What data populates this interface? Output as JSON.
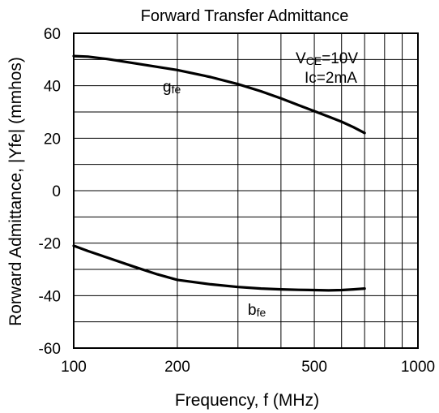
{
  "chart_data": {
    "type": "line",
    "title": "Forward Transfer Admittance",
    "xlabel": "Frequency, f (MHz)",
    "ylabel": "Rorward Admittance, |Yfe| (mmhos)",
    "x_scale": "log",
    "xlim": [
      100,
      1000
    ],
    "ylim": [
      -60,
      60
    ],
    "x_ticks": [
      100,
      200,
      500,
      1000
    ],
    "x_tick_labels": [
      "100",
      "200",
      "500",
      "1000"
    ],
    "y_ticks": [
      60,
      40,
      20,
      0,
      -20,
      -40,
      -60
    ],
    "y_tick_labels": [
      "60",
      "40",
      "20",
      "0",
      "-20",
      "-40",
      "-60"
    ],
    "x_grid": [
      100,
      200,
      300,
      400,
      500,
      600,
      700,
      800,
      900,
      1000
    ],
    "y_grid": [
      60,
      50,
      40,
      30,
      20,
      10,
      0,
      -10,
      -20,
      -30,
      -40,
      -50,
      -60
    ],
    "grid": true,
    "conditions": {
      "vce": {
        "main": "V",
        "sub": "CE",
        "rest": "=10V"
      },
      "ic": {
        "main": "Ic=2mA"
      }
    },
    "series": [
      {
        "name": "gfe",
        "label": {
          "main": "g",
          "sub": "fe"
        },
        "x": [
          100,
          110,
          125,
          150,
          175,
          200,
          250,
          300,
          350,
          400,
          450,
          500,
          550,
          600,
          650,
          700
        ],
        "y": [
          51.3,
          51.1,
          50.2,
          48.6,
          47.2,
          46.0,
          43.3,
          40.6,
          37.9,
          35.2,
          32.6,
          30.3,
          28.2,
          26.3,
          24.2,
          22.0
        ]
      },
      {
        "name": "bfe",
        "label": {
          "main": "b",
          "sub": "fe"
        },
        "x": [
          100,
          110,
          125,
          150,
          175,
          200,
          250,
          300,
          350,
          400,
          450,
          500,
          550,
          600,
          650,
          700
        ],
        "y": [
          -21.0,
          -23.0,
          -25.5,
          -29.0,
          -31.9,
          -34.0,
          -35.7,
          -36.7,
          -37.3,
          -37.6,
          -37.8,
          -37.9,
          -38.0,
          -37.9,
          -37.6,
          -37.3
        ]
      }
    ]
  }
}
